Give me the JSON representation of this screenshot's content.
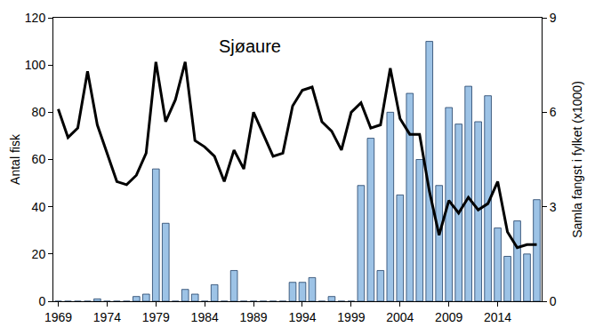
{
  "chart_data": {
    "type": "bar",
    "title": "Sjøaure",
    "y_label": "Antal fisk",
    "y2_label": "Samla fangst i fylket (x1000)",
    "x": [
      1969,
      1970,
      1971,
      1972,
      1973,
      1974,
      1975,
      1976,
      1977,
      1978,
      1979,
      1980,
      1981,
      1982,
      1983,
      1984,
      1985,
      1986,
      1987,
      1988,
      1989,
      1990,
      1991,
      1992,
      1993,
      1994,
      1995,
      1996,
      1997,
      1998,
      1999,
      2000,
      2001,
      2002,
      2003,
      2004,
      2005,
      2006,
      2007,
      2008,
      2009,
      2010,
      2011,
      2012,
      2013,
      2014,
      2015,
      2016,
      2017,
      2018
    ],
    "series": [
      {
        "type": "bar",
        "color": "#9dc3e6",
        "axis": "y",
        "values": [
          0,
          0,
          0,
          0,
          1,
          0,
          0,
          0,
          2,
          3,
          56,
          33,
          0,
          5,
          3,
          0,
          7,
          0,
          13,
          0,
          0,
          0,
          0,
          0,
          8,
          8,
          10,
          0,
          2,
          0,
          0,
          49,
          69,
          13,
          80,
          45,
          88,
          60,
          110,
          49,
          82,
          75,
          91,
          76,
          87,
          31,
          19,
          34,
          20,
          43
        ]
      },
      {
        "type": "line",
        "color": "#000000",
        "axis": "y2",
        "values": [
          6.1,
          5.2,
          5.5,
          7.3,
          5.6,
          4.7,
          3.8,
          3.7,
          4.0,
          4.7,
          7.6,
          5.7,
          6.4,
          7.6,
          5.1,
          4.9,
          4.6,
          3.8,
          4.8,
          4.2,
          6.0,
          5.3,
          4.6,
          4.7,
          6.2,
          6.7,
          6.8,
          5.7,
          5.4,
          4.8,
          6.0,
          6.3,
          5.5,
          5.6,
          7.4,
          5.8,
          5.3,
          5.3,
          3.5,
          2.1,
          3.2,
          2.8,
          3.3,
          2.9,
          3.1,
          3.8,
          2.2,
          1.7,
          1.8,
          1.8
        ]
      }
    ],
    "xlim": [
      1968.5,
      2018.5
    ],
    "xticks": [
      1969,
      1974,
      1979,
      1984,
      1989,
      1994,
      1999,
      2004,
      2009,
      2014
    ],
    "ylim": [
      0,
      120
    ],
    "yticks": [
      0,
      20,
      40,
      60,
      80,
      100,
      120
    ],
    "y2lim": [
      0,
      9
    ],
    "y2ticks": [
      0,
      3,
      6,
      9
    ],
    "grid": false
  }
}
